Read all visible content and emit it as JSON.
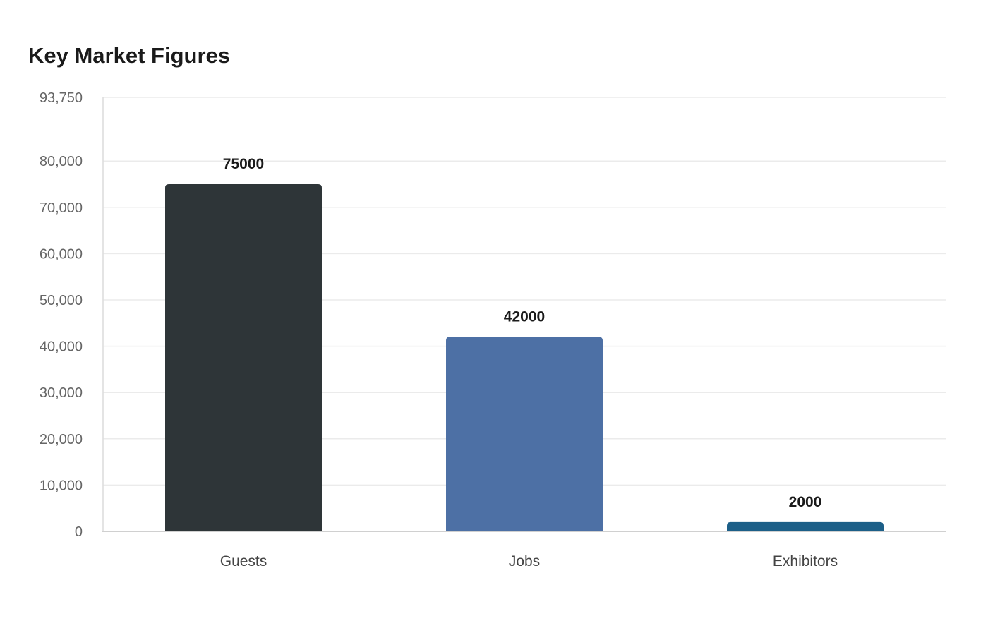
{
  "chart_data": {
    "type": "bar",
    "title": "Key Market Figures",
    "xlabel": "",
    "ylabel": "",
    "categories": [
      "Guests",
      "Jobs",
      "Exhibitors"
    ],
    "values": [
      75000,
      42000,
      2000
    ],
    "data_labels": [
      "75000",
      "42000",
      "2000"
    ],
    "bar_colors": [
      "#2e3538",
      "#4d70a5",
      "#1c5f88"
    ],
    "ylim": [
      0,
      93750
    ],
    "y_ticks": [
      0,
      10000,
      20000,
      30000,
      40000,
      50000,
      60000,
      70000,
      80000,
      93750
    ],
    "y_tick_labels": [
      "0",
      "10,000",
      "20,000",
      "30,000",
      "40,000",
      "50,000",
      "60,000",
      "70,000",
      "80,000",
      "93,750"
    ],
    "grid": true,
    "legend": "none"
  }
}
